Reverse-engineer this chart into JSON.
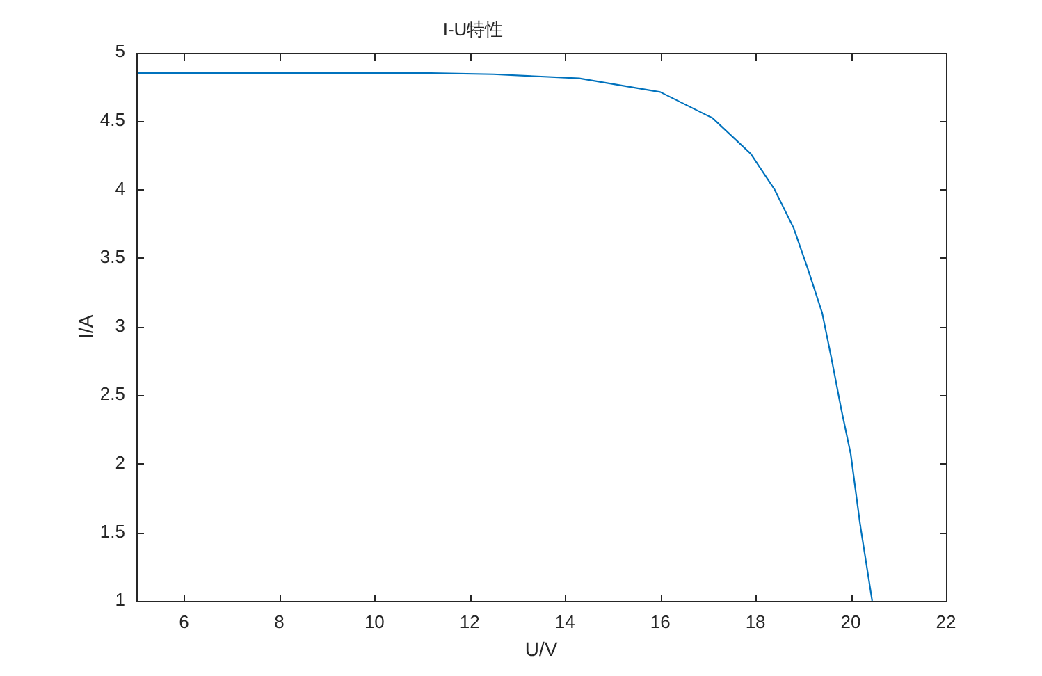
{
  "chart_data": {
    "type": "line",
    "title": "I-U特性",
    "xlabel": "U/V",
    "ylabel": "I/A",
    "x": [
      5,
      8,
      11,
      12.5,
      14.3,
      16,
      17.1,
      17.9,
      18.4,
      18.8,
      19.1,
      19.4,
      19.6,
      19.8,
      20,
      20.2,
      20.45
    ],
    "series": [
      {
        "color": "#0072bd",
        "values": [
          4.85,
          4.85,
          4.85,
          4.84,
          4.81,
          4.71,
          4.52,
          4.26,
          4.0,
          3.72,
          3.42,
          3.1,
          2.76,
          2.4,
          2.07,
          1.55,
          1.0
        ]
      }
    ],
    "xlim": [
      5,
      22
    ],
    "xticks": [
      6,
      8,
      10,
      12,
      14,
      16,
      18,
      20,
      22
    ],
    "ylim": [
      1,
      5
    ],
    "yticks": [
      1,
      1.5,
      2,
      2.5,
      3,
      3.5,
      4,
      4.5,
      5
    ]
  }
}
